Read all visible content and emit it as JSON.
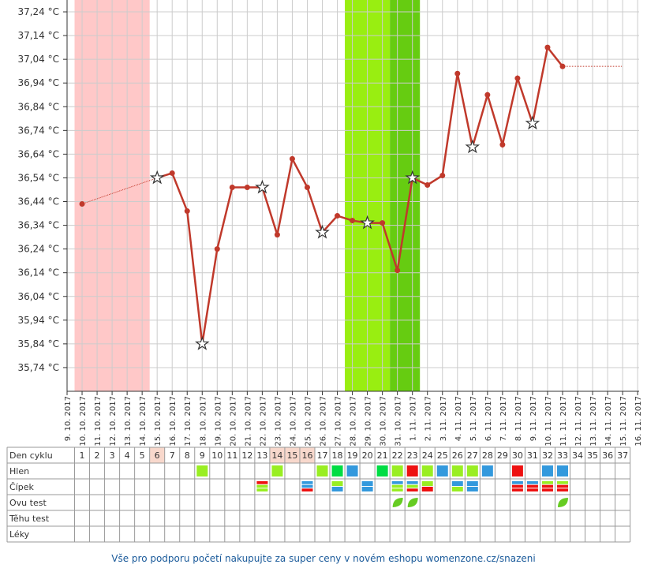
{
  "chart_data": {
    "type": "line",
    "categories": [
      "9. 10. 2017",
      "10. 10. 2017",
      "11. 10. 2017",
      "12. 10. 2017",
      "13. 10. 2017",
      "14. 10. 2017",
      "15. 10. 2017",
      "16. 10. 2017",
      "17. 10. 2017",
      "18. 10. 2017",
      "19. 10. 2017",
      "20. 10. 2017",
      "21. 10. 2017",
      "22. 10. 2017",
      "23. 10. 2017",
      "24. 10. 2017",
      "25. 10. 2017",
      "26. 10. 2017",
      "27. 10. 2017",
      "28. 10. 2017",
      "29. 10. 2017",
      "30. 10. 2017",
      "31. 10. 2017",
      "1. 11. 2017",
      "2. 11. 2017",
      "3. 11. 2017",
      "4. 11. 2017",
      "5. 11. 2017",
      "6. 11. 2017",
      "7. 11. 2017",
      "8. 11. 2017",
      "9. 11. 2017",
      "10. 11. 2017",
      "11. 11. 2017",
      "12. 11. 2017",
      "13. 11. 2017",
      "14. 11. 2017",
      "15. 11. 2017",
      "16. 11. 2017"
    ],
    "series": [
      {
        "color": "#c0392b",
        "values": [
          null,
          36.43,
          null,
          null,
          null,
          null,
          36.54,
          36.56,
          36.4,
          35.84,
          36.24,
          36.5,
          36.5,
          36.5,
          36.3,
          36.62,
          36.5,
          36.31,
          36.38,
          36.36,
          36.35,
          36.35,
          36.15,
          36.54,
          36.51,
          36.55,
          36.98,
          36.67,
          36.89,
          36.68,
          36.96,
          36.77,
          37.09,
          37.01,
          null,
          null,
          null,
          null,
          null
        ],
        "markers": [
          null,
          "dot",
          null,
          null,
          null,
          null,
          "star",
          "dot",
          "dot",
          "star",
          "dot",
          "dot",
          "dot",
          "star",
          "dot",
          "dot",
          "dot",
          "star",
          "dot",
          "dot",
          "star",
          "dot",
          "dot",
          "star",
          "dot",
          "dot",
          "dot",
          "star",
          "dot",
          "dot",
          "dot",
          "star",
          "dot",
          "dot",
          null,
          null,
          null,
          null,
          null
        ]
      }
    ],
    "ylim": [
      35.64,
      37.29
    ],
    "yticks": [
      {
        "value": 35.74,
        "label": "35,74 °C"
      },
      {
        "value": 35.84,
        "label": "35,84 °C"
      },
      {
        "value": 35.94,
        "label": "35,94 °C"
      },
      {
        "value": 36.04,
        "label": "36,04 °C"
      },
      {
        "value": 36.14,
        "label": "36,14 °C"
      },
      {
        "value": 36.24,
        "label": "36,24 °C"
      },
      {
        "value": 36.34,
        "label": "36,34 °C"
      },
      {
        "value": 36.44,
        "label": "36,44 °C"
      },
      {
        "value": 36.54,
        "label": "36,54 °C"
      },
      {
        "value": 36.64,
        "label": "36,64 °C"
      },
      {
        "value": 36.74,
        "label": "36,74 °C"
      },
      {
        "value": 36.84,
        "label": "36,84 °C"
      },
      {
        "value": 36.94,
        "label": "36,94 °C"
      },
      {
        "value": 37.04,
        "label": "37,04 °C"
      },
      {
        "value": 37.14,
        "label": "37,14 °C"
      },
      {
        "value": 37.24,
        "label": "37,24 °C"
      }
    ],
    "grid": true,
    "bands": [
      {
        "from": 1,
        "to": 5,
        "color": "#ffc8c8"
      },
      {
        "from": 19,
        "to": 21,
        "color": "#99ee11"
      },
      {
        "from": 22,
        "to": 23,
        "color": "#66cc11"
      }
    ]
  },
  "table": {
    "row_labels": [
      "Den cyklu",
      "Hlen",
      "Čípek",
      "Ovu test",
      "Těhu test",
      "Léky"
    ],
    "cycle_days": [
      1,
      2,
      3,
      4,
      5,
      6,
      7,
      8,
      9,
      10,
      11,
      12,
      13,
      14,
      15,
      16,
      17,
      18,
      19,
      20,
      21,
      22,
      23,
      24,
      25,
      26,
      27,
      28,
      29,
      30,
      31,
      32,
      33,
      34,
      35,
      36,
      37
    ],
    "highlight_days": [
      6,
      14,
      15,
      16
    ],
    "hlen": [
      {
        "day": 9,
        "colors": [
          "#99ee22"
        ]
      },
      {
        "day": 14,
        "colors": [
          "#99ee22"
        ]
      },
      {
        "day": 17,
        "colors": [
          "#99ee22"
        ]
      },
      {
        "day": 18,
        "colors": [
          "#00dd44"
        ]
      },
      {
        "day": 19,
        "colors": [
          "#3399dd"
        ]
      },
      {
        "day": 21,
        "colors": [
          "#00dd44"
        ]
      },
      {
        "day": 22,
        "colors": [
          "#99ee22"
        ]
      },
      {
        "day": 23,
        "colors": [
          "#ee1111"
        ]
      },
      {
        "day": 24,
        "colors": [
          "#99ee22"
        ]
      },
      {
        "day": 25,
        "colors": [
          "#3399dd"
        ]
      },
      {
        "day": 26,
        "colors": [
          "#99ee22"
        ]
      },
      {
        "day": 27,
        "colors": [
          "#99ee22"
        ]
      },
      {
        "day": 28,
        "colors": [
          "#3399dd"
        ]
      },
      {
        "day": 30,
        "colors": [
          "#ee1111"
        ]
      },
      {
        "day": 32,
        "colors": [
          "#3399dd"
        ]
      },
      {
        "day": 33,
        "colors": [
          "#3399dd"
        ]
      }
    ],
    "cipek": [
      {
        "day": 13,
        "colors": [
          "#ee1111",
          "#99ee22",
          "#99ee22"
        ]
      },
      {
        "day": 16,
        "colors": [
          "#3399dd",
          "#3399dd",
          "#ee1111"
        ]
      },
      {
        "day": 18,
        "colors": [
          "#99ee22",
          "#3399dd"
        ]
      },
      {
        "day": 20,
        "colors": [
          "#3399dd",
          "#3399dd"
        ]
      },
      {
        "day": 22,
        "colors": [
          "#3399dd",
          "#99ee22",
          "#99ee22"
        ]
      },
      {
        "day": 23,
        "colors": [
          "#3399dd",
          "#99ee22",
          "#ee1111"
        ]
      },
      {
        "day": 24,
        "colors": [
          "#99ee22",
          "#ee1111"
        ]
      },
      {
        "day": 26,
        "colors": [
          "#3399dd",
          "#99ee22"
        ]
      },
      {
        "day": 27,
        "colors": [
          "#3399dd",
          "#3399dd"
        ]
      },
      {
        "day": 30,
        "colors": [
          "#3399dd",
          "#ee1111",
          "#ee1111"
        ]
      },
      {
        "day": 31,
        "colors": [
          "#3399dd",
          "#ee1111",
          "#ee1111"
        ]
      },
      {
        "day": 32,
        "colors": [
          "#99ee22",
          "#ee1111",
          "#ee1111"
        ]
      },
      {
        "day": 33,
        "colors": [
          "#99ee22",
          "#ee1111",
          "#ee1111"
        ]
      }
    ],
    "ovu_test_days": [
      22,
      23,
      33
    ]
  },
  "footer": "Vše pro podporu početí nakupujte za super ceny v novém eshopu womenzone.cz/snazeni"
}
